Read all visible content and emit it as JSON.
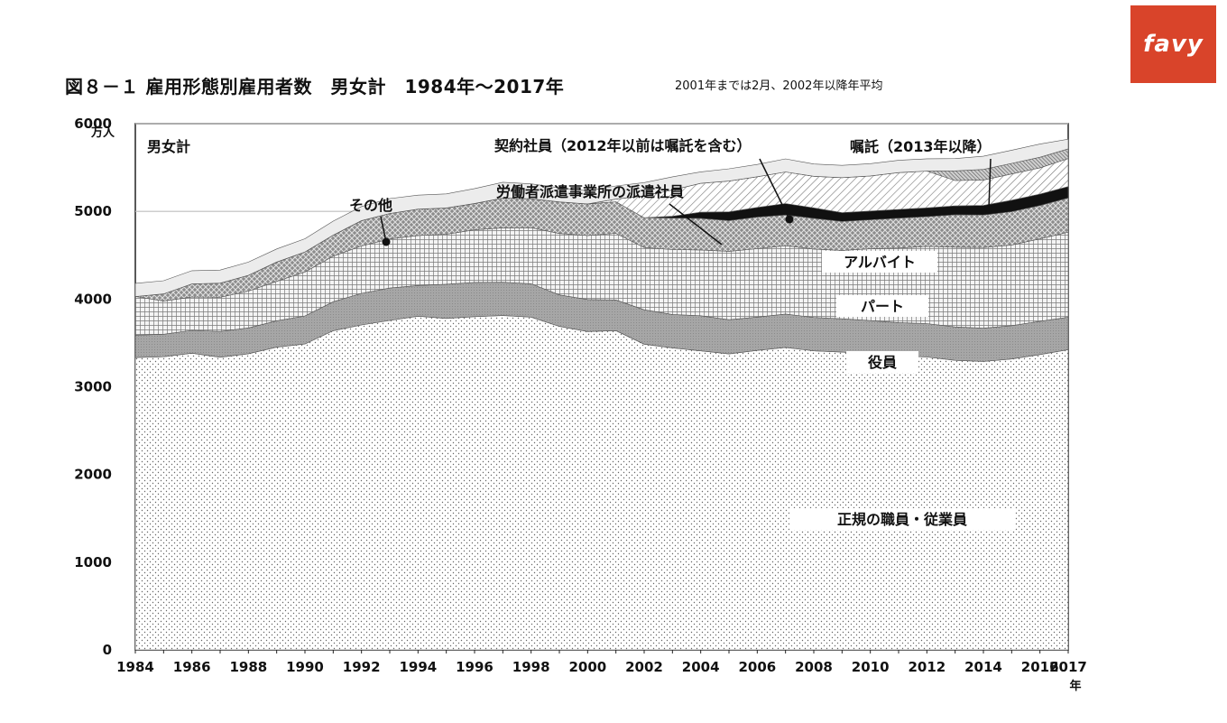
{
  "header": {
    "title": "図８－１ 雇用形態別雇用者数　男女計　1984年～2017年",
    "note": "2001年までは2月、2002年以降年平均"
  },
  "brand": {
    "logo_text": "favy",
    "color": "#d9442a"
  },
  "chart_data": {
    "type": "area",
    "stacked": true,
    "title": "男女計",
    "unit_label": "万人",
    "x_suffix_label": "年",
    "ylim": [
      0,
      6000
    ],
    "yticks": [
      0,
      1000,
      2000,
      3000,
      4000,
      5000,
      6000
    ],
    "gridlines": [
      5000,
      6000
    ],
    "x": [
      1984,
      1985,
      1986,
      1987,
      1988,
      1989,
      1990,
      1991,
      1992,
      1993,
      1994,
      1995,
      1996,
      1997,
      1998,
      1999,
      2000,
      2001,
      2002,
      2003,
      2004,
      2005,
      2006,
      2007,
      2008,
      2009,
      2010,
      2011,
      2012,
      2013,
      2014,
      2015,
      2016,
      2017
    ],
    "xtick_labels": [
      "1984",
      "1986",
      "1988",
      "1990",
      "1992",
      "1994",
      "1996",
      "1998",
      "2000",
      "2002",
      "2004",
      "2006",
      "2008",
      "2010",
      "2012",
      "2014",
      "2016",
      "2017"
    ],
    "series": [
      {
        "name": "正規の職員・従業員",
        "pattern": "dots",
        "values": [
          3333,
          3343,
          3383,
          3337,
          3377,
          3452,
          3488,
          3639,
          3705,
          3756,
          3805,
          3779,
          3800,
          3812,
          3794,
          3688,
          3630,
          3640,
          3486,
          3444,
          3410,
          3375,
          3415,
          3449,
          3410,
          3395,
          3374,
          3352,
          3340,
          3302,
          3288,
          3317,
          3367,
          3423
        ]
      },
      {
        "name": "役員",
        "pattern": "gray",
        "values": [
          256,
          256,
          260,
          294,
          294,
          300,
          320,
          330,
          360,
          370,
          350,
          390,
          390,
          380,
          380,
          360,
          365,
          350,
          392,
          380,
          400,
          390,
          380,
          380,
          380,
          380,
          380,
          380,
          380,
          380,
          380,
          380,
          380,
          370
        ]
      },
      {
        "name": "パート",
        "pattern": "grid",
        "values": [
          440,
          380,
          380,
          390,
          420,
          450,
          500,
          520,
          540,
          560,
          570,
          570,
          600,
          620,
          640,
          700,
          730,
          760,
          710,
          740,
          750,
          780,
          780,
          780,
          780,
          780,
          820,
          850,
          880,
          910,
          920,
          920,
          940,
          970
        ]
      },
      {
        "name": "アルバイト",
        "pattern": "cross",
        "values": [
          0,
          80,
          150,
          160,
          180,
          220,
          230,
          240,
          290,
          290,
          300,
          300,
          300,
          340,
          330,
          360,
          360,
          360,
          340,
          360,
          360,
          350,
          360,
          350,
          350,
          330,
          330,
          340,
          340,
          370,
          370,
          380,
          380,
          390
        ]
      },
      {
        "name": "労働者派遣事業所の派遣社員",
        "pattern": "black",
        "values": [
          0,
          0,
          0,
          0,
          0,
          0,
          0,
          0,
          0,
          0,
          0,
          0,
          0,
          0,
          0,
          0,
          0,
          0,
          0,
          20,
          70,
          100,
          110,
          130,
          120,
          100,
          100,
          100,
          100,
          100,
          110,
          130,
          130,
          130
        ]
      },
      {
        "name": "契約社員（2012年以前は嘱託を含む）",
        "pattern": "hatch",
        "values": [
          0,
          0,
          0,
          0,
          0,
          0,
          0,
          0,
          0,
          0,
          0,
          0,
          0,
          0,
          0,
          0,
          0,
          30,
          250,
          300,
          330,
          350,
          350,
          360,
          360,
          400,
          400,
          420,
          420,
          290,
          290,
          300,
          300,
          320
        ]
      },
      {
        "name": "嘱託（2013年以降）",
        "pattern": "hatch-dense",
        "values": [
          0,
          0,
          0,
          0,
          0,
          0,
          0,
          0,
          0,
          0,
          0,
          0,
          0,
          0,
          0,
          0,
          0,
          0,
          0,
          0,
          0,
          0,
          0,
          0,
          0,
          0,
          0,
          0,
          0,
          110,
          120,
          120,
          120,
          110
        ]
      },
      {
        "name": "その他",
        "pattern": "light",
        "values": [
          150,
          150,
          150,
          150,
          150,
          150,
          150,
          160,
          160,
          170,
          160,
          160,
          170,
          180,
          170,
          160,
          150,
          150,
          150,
          150,
          130,
          140,
          140,
          150,
          140,
          140,
          140,
          140,
          140,
          140,
          150,
          150,
          150,
          110
        ]
      }
    ],
    "annotations": [
      {
        "text": "男女計"
      },
      {
        "text": "契約社員（2012年以前は嘱託を含む）"
      },
      {
        "text": "嘱託（2013年以降）"
      },
      {
        "text": "労働者派遣事業所の派遣社員"
      },
      {
        "text": "その他"
      },
      {
        "text": "アルバイト"
      },
      {
        "text": "パート"
      },
      {
        "text": "役員"
      },
      {
        "text": "正規の職員・従業員"
      }
    ]
  }
}
